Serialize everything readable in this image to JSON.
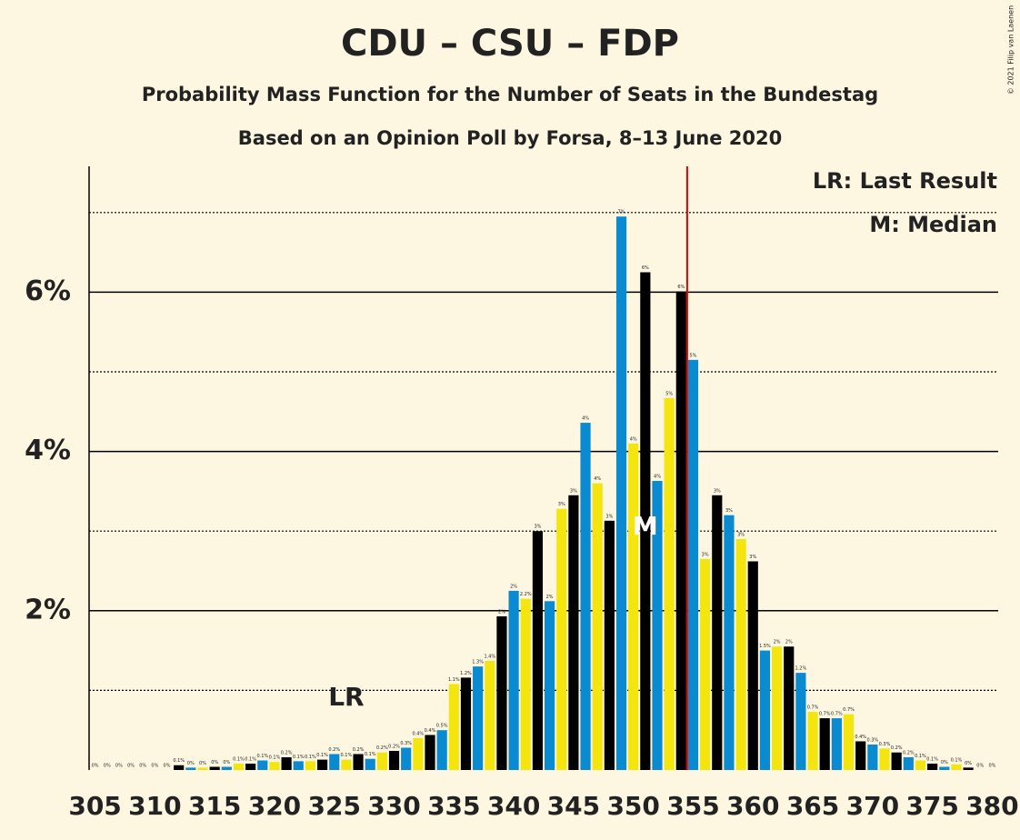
{
  "chart_data": {
    "type": "bar",
    "title": "CDU – CSU – FDP",
    "subtitle": "Probability Mass Function for the Number of Seats in the Bundestag",
    "subtitle2": "Based on an Opinion Poll by Forsa, 8–13 June 2020",
    "credit": "© 2021 Filip van Laenen",
    "legend": [
      "LR: Last Result",
      "M: Median"
    ],
    "x": [
      305,
      306,
      307,
      308,
      309,
      310,
      311,
      312,
      313,
      314,
      315,
      316,
      317,
      318,
      319,
      320,
      321,
      322,
      323,
      324,
      325,
      326,
      327,
      328,
      329,
      330,
      331,
      332,
      333,
      334,
      335,
      336,
      337,
      338,
      339,
      340,
      341,
      342,
      343,
      344,
      345,
      346,
      347,
      348,
      349,
      350,
      351,
      352,
      353,
      354,
      355,
      356,
      357,
      358,
      359,
      360,
      361,
      362,
      363,
      364,
      365,
      366,
      367,
      368,
      369,
      370,
      371,
      372,
      373,
      374,
      375,
      376,
      377,
      378,
      379,
      380
    ],
    "values": [
      0,
      0,
      0,
      0,
      0,
      0,
      0,
      0.06,
      0.03,
      0.03,
      0.04,
      0.04,
      0.08,
      0.08,
      0.12,
      0.1,
      0.16,
      0.11,
      0.11,
      0.13,
      0.2,
      0.13,
      0.2,
      0.14,
      0.22,
      0.24,
      0.28,
      0.4,
      0.44,
      0.5,
      1.08,
      1.16,
      1.3,
      1.37,
      1.93,
      2.25,
      2.15,
      3.0,
      2.12,
      3.28,
      3.45,
      4.36,
      3.6,
      3.13,
      6.95,
      4.1,
      6.25,
      3.63,
      4.67,
      6.01,
      5.15,
      2.65,
      3.45,
      3.2,
      2.9,
      2.62,
      1.5,
      1.55,
      1.55,
      1.22,
      0.73,
      0.65,
      0.65,
      0.7,
      0.36,
      0.32,
      0.27,
      0.22,
      0.16,
      0.12,
      0.08,
      0.04,
      0.07,
      0.03,
      0,
      0
    ],
    "value_labels": [
      "0%",
      "0%",
      "0%",
      "0%",
      "0%",
      "0%",
      "0%",
      "0.1%",
      "0%",
      "0%",
      "0%",
      "0%",
      "0.1%",
      "0.1%",
      "0.1%",
      "0.1%",
      "0.2%",
      "0.1%",
      "0.1%",
      "0.1%",
      "0.2%",
      "0.1%",
      "0.2%",
      "0.1%",
      "0.2%",
      "0.2%",
      "0.3%",
      "0.4%",
      "0.4%",
      "0.5%",
      "1.1%",
      "1.2%",
      "1.3%",
      "1.4%",
      "2%",
      "2%",
      "2.2%",
      "3%",
      "2%",
      "3%",
      "3%",
      "4%",
      "4%",
      "3%",
      "7%",
      "4%",
      "6%",
      "4%",
      "5%",
      "6%",
      "5%",
      "3%",
      "3%",
      "3%",
      "3%",
      "3%",
      "1.5%",
      "2%",
      "2%",
      "1.2%",
      "0.7%",
      "0.7%",
      "0.7%",
      "0.7%",
      "0.4%",
      "0.3%",
      "0.3%",
      "0.2%",
      "0.2%",
      "0.1%",
      "0.1%",
      "0%",
      "0.1%",
      "0%",
      "0%",
      "0%"
    ],
    "color_cycle": [
      "#f5e50e",
      "#000000",
      "#0a8bd1"
    ],
    "xlim": [
      304.5,
      380.5
    ],
    "xticks": [
      305,
      310,
      315,
      320,
      325,
      330,
      335,
      340,
      345,
      350,
      355,
      360,
      365,
      370,
      375,
      380
    ],
    "ylim": [
      0,
      7.58
    ],
    "yticks": [
      {
        "value": 2,
        "label": "2%"
      },
      {
        "value": 4,
        "label": "4%"
      },
      {
        "value": 6,
        "label": "6%"
      }
    ],
    "minor_yticks": [
      1,
      3,
      5,
      7
    ],
    "threshold_x": 354.5,
    "threshold_color": "#e00000",
    "annotations": [
      {
        "text": "LR",
        "x": 326,
        "y": 0.9
      },
      {
        "text": "M",
        "x": 351,
        "y": 3.05
      }
    ]
  }
}
